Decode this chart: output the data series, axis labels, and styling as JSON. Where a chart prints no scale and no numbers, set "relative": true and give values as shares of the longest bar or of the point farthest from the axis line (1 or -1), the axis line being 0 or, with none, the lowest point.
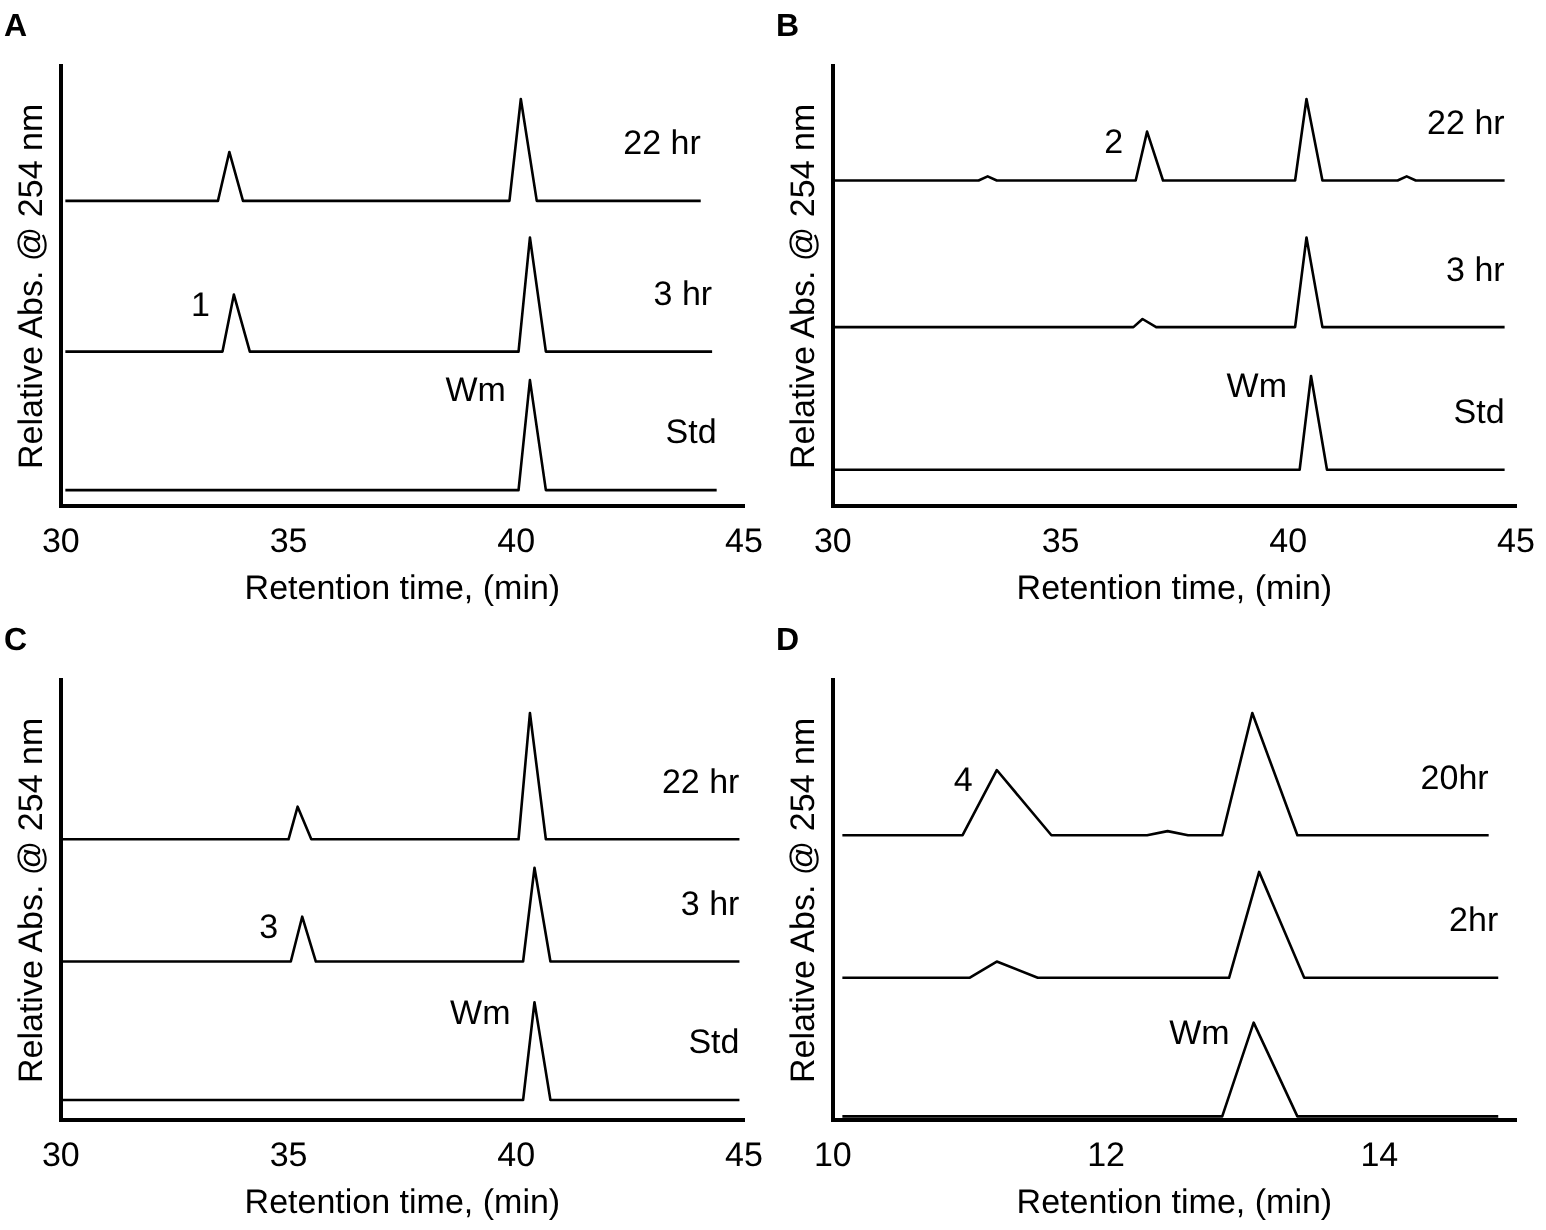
{
  "chart_data": [
    {
      "type": "line",
      "title": "A",
      "xlabel": "Retention time, (min)",
      "ylabel": "Relative Abs. @ 254 nm",
      "relative": true,
      "xlim": [
        30,
        45
      ],
      "xticks": [
        30,
        35,
        40,
        45
      ],
      "tick_labels": "x",
      "legend": false,
      "grid": false,
      "marker": "none",
      "line_style": "solid",
      "series": [
        {
          "name": "22 hr",
          "color": "#000000",
          "x": [
            30.1,
            33.45,
            33.7,
            34.0,
            39.85,
            40.1,
            40.45,
            44.05
          ],
          "values": [
            0.75,
            0.75,
            0.87,
            0.75,
            0.75,
            1,
            0.75,
            0.75
          ]
        },
        {
          "name": "3 hr",
          "color": "#000000",
          "x": [
            30.1,
            33.55,
            33.8,
            34.15,
            40.05,
            40.3,
            40.65,
            44.3
          ],
          "values": [
            0.38,
            0.38,
            0.52,
            0.38,
            0.38,
            0.66,
            0.38,
            0.38
          ]
        },
        {
          "name": "Std",
          "color": "#000000",
          "x": [
            30.1,
            40.05,
            40.3,
            40.65,
            44.4
          ],
          "values": [
            0.04,
            0.04,
            0.31,
            0.04,
            0.04
          ]
        }
      ],
      "annotations": [
        {
          "text": "1",
          "x": 33.8,
          "y": 0.52
        },
        {
          "text": "Wm",
          "x": 40.3,
          "y": 0.31
        }
      ]
    },
    {
      "type": "line",
      "title": "B",
      "xlabel": "Retention time, (min)",
      "ylabel": "Relative Abs. @ 254 nm",
      "relative": true,
      "xlim": [
        30,
        45
      ],
      "xticks": [
        30,
        35,
        40,
        45
      ],
      "tick_labels": "x",
      "legend": false,
      "grid": false,
      "marker": "none",
      "line_style": "solid",
      "series": [
        {
          "name": "22 hr",
          "color": "#000000",
          "x": [
            30,
            33.2,
            33.4,
            33.6,
            36.65,
            36.9,
            37.25,
            40.15,
            40.4,
            40.75,
            42.4,
            42.6,
            42.8,
            44.75
          ],
          "values": [
            0.8,
            0.8,
            0.81,
            0.8,
            0.8,
            0.92,
            0.8,
            0.8,
            1,
            0.8,
            0.8,
            0.81,
            0.8,
            0.8
          ]
        },
        {
          "name": "3 hr",
          "color": "#000000",
          "x": [
            30,
            36.6,
            36.8,
            37.1,
            40.15,
            40.4,
            40.75,
            44.75
          ],
          "values": [
            0.44,
            0.44,
            0.46,
            0.44,
            0.44,
            0.66,
            0.44,
            0.44
          ]
        },
        {
          "name": "Std",
          "color": "#000000",
          "x": [
            30,
            40.25,
            40.5,
            40.85,
            44.75
          ],
          "values": [
            0.09,
            0.09,
            0.32,
            0.09,
            0.09
          ]
        }
      ],
      "annotations": [
        {
          "text": "2",
          "x": 36.9,
          "y": 0.92
        },
        {
          "text": "Wm",
          "x": 40.5,
          "y": 0.32
        }
      ]
    },
    {
      "type": "line",
      "title": "C",
      "xlabel": "Retention time, (min)",
      "ylabel": "Relative Abs. @ 254 nm",
      "relative": true,
      "xlim": [
        30,
        45
      ],
      "xticks": [
        30,
        35,
        40,
        45
      ],
      "tick_labels": "x",
      "legend": false,
      "grid": false,
      "marker": "none",
      "line_style": "solid",
      "series": [
        {
          "name": "22 hr",
          "color": "#000000",
          "x": [
            30,
            35.0,
            35.2,
            35.5,
            40.05,
            40.3,
            40.65,
            44.9
          ],
          "values": [
            0.69,
            0.69,
            0.77,
            0.69,
            0.69,
            1,
            0.69,
            0.69
          ]
        },
        {
          "name": "3 hr",
          "color": "#000000",
          "x": [
            30,
            35.05,
            35.3,
            35.6,
            40.15,
            40.4,
            40.75,
            44.9
          ],
          "values": [
            0.39,
            0.39,
            0.5,
            0.39,
            0.39,
            0.62,
            0.39,
            0.39
          ]
        },
        {
          "name": "Std",
          "color": "#000000",
          "x": [
            30,
            40.15,
            40.4,
            40.75,
            44.9
          ],
          "values": [
            0.05,
            0.05,
            0.29,
            0.05,
            0.05
          ]
        }
      ],
      "annotations": [
        {
          "text": "3",
          "x": 35.3,
          "y": 0.5
        },
        {
          "text": "Wm",
          "x": 40.4,
          "y": 0.29
        }
      ]
    },
    {
      "type": "line",
      "title": "D",
      "xlabel": "Retention time, (min)",
      "ylabel": "Relative Abs. @ 254 nm",
      "relative": true,
      "xlim": [
        10,
        15
      ],
      "xticks": [
        10,
        12,
        14
      ],
      "tick_labels": "x",
      "legend": false,
      "grid": false,
      "marker": "none",
      "line_style": "solid",
      "series": [
        {
          "name": "20hr",
          "color": "#000000",
          "x": [
            10.07,
            10.95,
            11.2,
            11.6,
            12.3,
            12.45,
            12.6,
            12.85,
            13.07,
            13.4,
            14.8
          ],
          "values": [
            0.7,
            0.7,
            0.86,
            0.7,
            0.7,
            0.71,
            0.7,
            0.7,
            1,
            0.7,
            0.7
          ]
        },
        {
          "name": "2hr",
          "color": "#000000",
          "x": [
            10.07,
            11.0,
            11.2,
            11.5,
            12.9,
            13.12,
            13.45,
            14.87
          ],
          "values": [
            0.35,
            0.35,
            0.39,
            0.35,
            0.35,
            0.61,
            0.35,
            0.35
          ]
        },
        {
          "color": "#000000",
          "x": [
            10.07,
            12.85,
            13.08,
            13.4,
            14.87
          ],
          "values": [
            0.01,
            0.01,
            0.24,
            0.01,
            0.01
          ]
        }
      ],
      "annotations": [
        {
          "text": "4",
          "x": 11.2,
          "y": 0.86
        },
        {
          "text": "Wm",
          "x": 13.08,
          "y": 0.24
        }
      ]
    }
  ]
}
